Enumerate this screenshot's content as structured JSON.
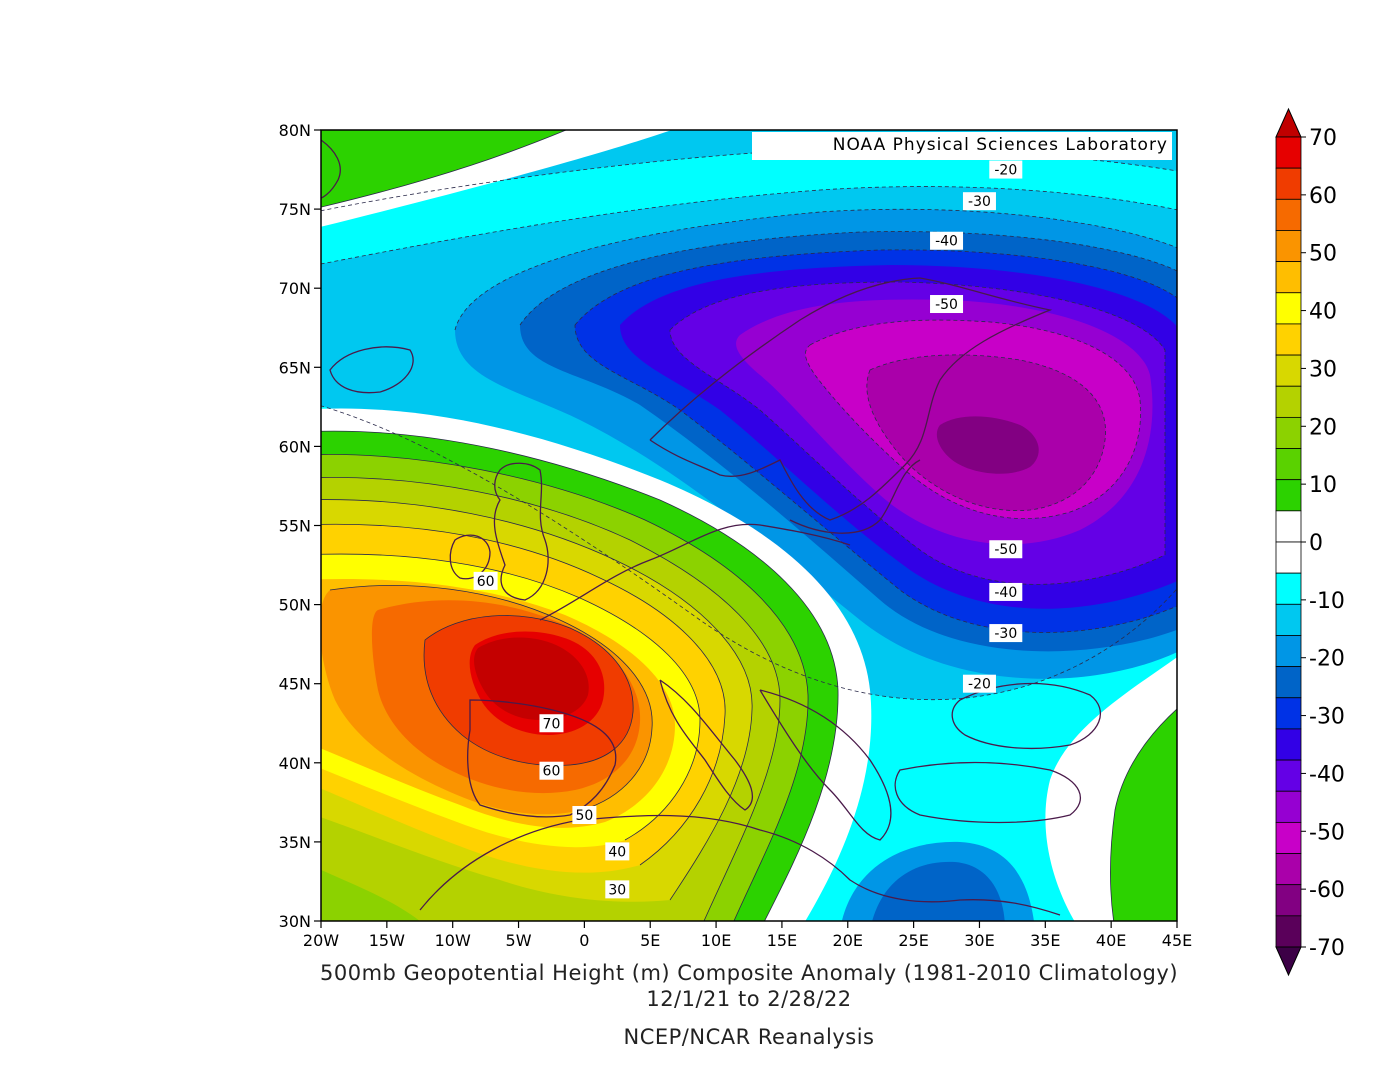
{
  "credit": "NOAA Physical Sciences Laboratory",
  "title": "500mb Geopotential Height (m) Composite Anomaly (1981-2010 Climatology)",
  "date_range": "12/1/21  to 2/28/22",
  "source": "NCEP/NCAR Reanalysis",
  "map": {
    "lon_range": [
      -20,
      45
    ],
    "lat_range": [
      30,
      80
    ],
    "lon_ticks": [
      "20W",
      "15W",
      "10W",
      "5W",
      "0",
      "5E",
      "10E",
      "15E",
      "20E",
      "25E",
      "30E",
      "35E",
      "40E",
      "45E"
    ],
    "lat_ticks": [
      "80N",
      "75N",
      "70N",
      "65N",
      "60N",
      "55N",
      "50N",
      "45N",
      "40N",
      "35N",
      "30N"
    ],
    "contour_labels": [
      {
        "text": "-20",
        "lon": 32.0,
        "lat": 77.5
      },
      {
        "text": "-30",
        "lon": 30.0,
        "lat": 75.5
      },
      {
        "text": "-40",
        "lon": 27.5,
        "lat": 73.0
      },
      {
        "text": "-50",
        "lon": 27.5,
        "lat": 69.0
      },
      {
        "text": "-50",
        "lon": 32.0,
        "lat": 53.5
      },
      {
        "text": "-40",
        "lon": 32.0,
        "lat": 50.8
      },
      {
        "text": "-30",
        "lon": 32.0,
        "lat": 48.2
      },
      {
        "text": "-20",
        "lon": 30.0,
        "lat": 45.0
      },
      {
        "text": "60",
        "lon": -7.5,
        "lat": 51.5
      },
      {
        "text": "70",
        "lon": -2.5,
        "lat": 42.5
      },
      {
        "text": "60",
        "lon": -2.5,
        "lat": 39.5
      },
      {
        "text": "50",
        "lon": 0.0,
        "lat": 36.7
      },
      {
        "text": "40",
        "lon": 2.5,
        "lat": 34.4
      },
      {
        "text": "30",
        "lon": 2.5,
        "lat": 32.0
      }
    ]
  },
  "colorbar": {
    "labels": [
      "70",
      "60",
      "50",
      "40",
      "30",
      "20",
      "10",
      "0",
      "-10",
      "-20",
      "-30",
      "-40",
      "-50",
      "-60",
      "-70"
    ],
    "colors": [
      "#e60000",
      "#f03c00",
      "#f66a00",
      "#fa9400",
      "#ffbe00",
      "#ffff00",
      "#ffd200",
      "#d8d800",
      "#b4d200",
      "#8cd200",
      "#5ad200",
      "#2cd200",
      "#ffffff",
      "#ffffff",
      "#00ffff",
      "#00c8f0",
      "#0096e6",
      "#0064c8",
      "#0032e6",
      "#3200e6",
      "#6400e6",
      "#9600d2",
      "#c800c8",
      "#aa00aa",
      "#820082",
      "#5a005a"
    ],
    "top_arrow_color": "#c00000",
    "bottom_arrow_color": "#3c0046"
  }
}
